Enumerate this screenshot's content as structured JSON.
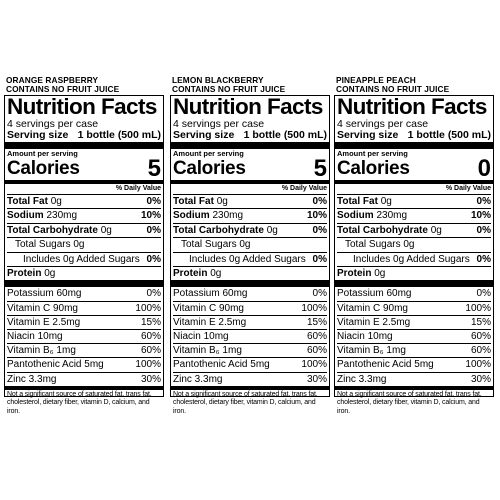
{
  "labels": [
    {
      "flavor_line1": "ORANGE RASPBERRY",
      "flavor_line2": "CONTAINS NO FRUIT JUICE",
      "title": "Nutrition Facts",
      "servings_per_container": "4 servings per case",
      "serving_size_label": "Serving size",
      "serving_size_value": "1 bottle (500 mL)",
      "amount_per_serving": "Amount per serving",
      "calories_label": "Calories",
      "calories_value": "5",
      "daily_value_header": "% Daily Value",
      "nutrients": {
        "total_fat": {
          "label": "Total Fat",
          "amount": "0g",
          "dv": "0%"
        },
        "sodium": {
          "label": "Sodium",
          "amount": "230mg",
          "dv": "10%"
        },
        "total_carb": {
          "label": "Total Carbohydrate",
          "amount": "0g",
          "dv": "0%"
        },
        "total_sugars": {
          "label": "Total Sugars 0g"
        },
        "added_sugars": {
          "label": "Includes 0g Added Sugars",
          "dv": "0%"
        },
        "protein": {
          "label": "Protein",
          "amount": "0g"
        }
      },
      "vitamins": [
        {
          "label": "Potassium 60mg",
          "dv": "0%"
        },
        {
          "label": "Vitamin C 90mg",
          "dv": "100%"
        },
        {
          "label": "Vitamin E 2.5mg",
          "dv": "15%"
        },
        {
          "label": "Niacin 10mg",
          "dv": "60%"
        },
        {
          "label": "Vitamin B₆ 1mg",
          "dv": "60%"
        },
        {
          "label": "Pantothenic Acid 5mg",
          "dv": "100%"
        },
        {
          "label": "Zinc 3.3mg",
          "dv": "30%"
        }
      ],
      "footnote": "Not a significant source of saturated fat, trans fat, cholesterol, dietary fiber, vitamin D, calcium, and iron."
    },
    {
      "flavor_line1": "LEMON BLACKBERRY",
      "flavor_line2": "CONTAINS NO FRUIT JUICE",
      "title": "Nutrition Facts",
      "servings_per_container": "4 servings per case",
      "serving_size_label": "Serving size",
      "serving_size_value": "1 bottle (500 mL)",
      "amount_per_serving": "Amount per serving",
      "calories_label": "Calories",
      "calories_value": "5",
      "daily_value_header": "% Daily Value",
      "nutrients": {
        "total_fat": {
          "label": "Total Fat",
          "amount": "0g",
          "dv": "0%"
        },
        "sodium": {
          "label": "Sodium",
          "amount": "230mg",
          "dv": "10%"
        },
        "total_carb": {
          "label": "Total Carbohydrate",
          "amount": "0g",
          "dv": "0%"
        },
        "total_sugars": {
          "label": "Total Sugars 0g"
        },
        "added_sugars": {
          "label": "Includes 0g Added Sugars",
          "dv": "0%"
        },
        "protein": {
          "label": "Protein",
          "amount": "0g"
        }
      },
      "vitamins": [
        {
          "label": "Potassium 60mg",
          "dv": "0%"
        },
        {
          "label": "Vitamin C 90mg",
          "dv": "100%"
        },
        {
          "label": "Vitamin E 2.5mg",
          "dv": "15%"
        },
        {
          "label": "Niacin 10mg",
          "dv": "60%"
        },
        {
          "label": "Vitamin B₆ 1mg",
          "dv": "60%"
        },
        {
          "label": "Pantothenic Acid 5mg",
          "dv": "100%"
        },
        {
          "label": "Zinc 3.3mg",
          "dv": "30%"
        }
      ],
      "footnote": "Not a significant source of saturated fat, trans fat, cholesterol, dietary fiber, vitamin D, calcium, and iron."
    },
    {
      "flavor_line1": "PINEAPPLE PEACH",
      "flavor_line2": "CONTAINS NO FRUIT JUICE",
      "title": "Nutrition Facts",
      "servings_per_container": "4 servings per case",
      "serving_size_label": "Serving size",
      "serving_size_value": "1 bottle (500 mL)",
      "amount_per_serving": "Amount per serving",
      "calories_label": "Calories",
      "calories_value": "0",
      "daily_value_header": "% Daily Value",
      "nutrients": {
        "total_fat": {
          "label": "Total Fat",
          "amount": "0g",
          "dv": "0%"
        },
        "sodium": {
          "label": "Sodium",
          "amount": "230mg",
          "dv": "10%"
        },
        "total_carb": {
          "label": "Total Carbohydrate",
          "amount": "0g",
          "dv": "0%"
        },
        "total_sugars": {
          "label": "Total Sugars 0g"
        },
        "added_sugars": {
          "label": "Includes 0g Added Sugars",
          "dv": "0%"
        },
        "protein": {
          "label": "Protein",
          "amount": "0g"
        }
      },
      "vitamins": [
        {
          "label": "Potassium 60mg",
          "dv": "0%"
        },
        {
          "label": "Vitamin C 90mg",
          "dv": "100%"
        },
        {
          "label": "Vitamin E 2.5mg",
          "dv": "15%"
        },
        {
          "label": "Niacin 10mg",
          "dv": "60%"
        },
        {
          "label": "Vitamin B₆ 1mg",
          "dv": "60%"
        },
        {
          "label": "Pantothenic Acid 5mg",
          "dv": "100%"
        },
        {
          "label": "Zinc 3.3mg",
          "dv": "30%"
        }
      ],
      "footnote": "Not a significant source of saturated fat, trans fat, cholesterol, dietary fiber, vitamin D, calcium, and iron."
    }
  ]
}
